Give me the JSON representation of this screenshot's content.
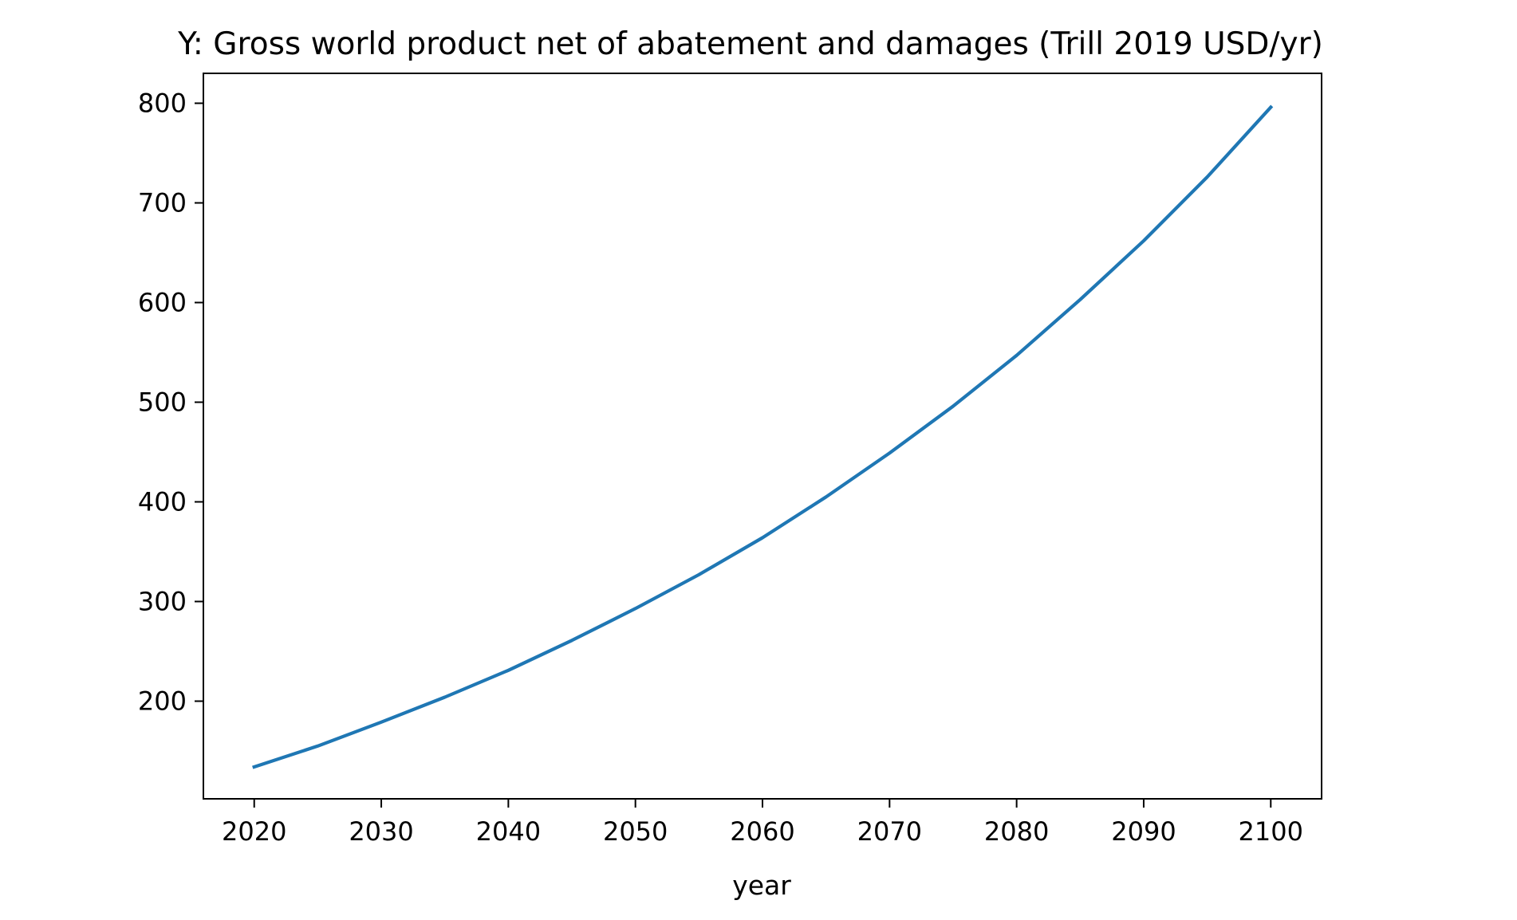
{
  "chart_data": {
    "type": "line",
    "title": "Y: Gross world product net of abatement and damages (Trill 2019 USD/yr)",
    "xlabel": "year",
    "ylabel": "",
    "xlim": [
      2016,
      2104
    ],
    "ylim": [
      102,
      830
    ],
    "x_ticks": [
      2020,
      2030,
      2040,
      2050,
      2060,
      2070,
      2080,
      2090,
      2100
    ],
    "y_ticks": [
      200,
      300,
      400,
      500,
      600,
      700,
      800
    ],
    "grid": false,
    "legend": "none",
    "series": [
      {
        "color": "#1f77b4",
        "x": [
          2020,
          2025,
          2030,
          2035,
          2040,
          2045,
          2050,
          2055,
          2060,
          2065,
          2070,
          2075,
          2080,
          2085,
          2090,
          2095,
          2100
        ],
        "y": [
          134,
          155,
          179,
          204,
          231,
          261,
          293,
          327,
          364,
          405,
          449,
          496,
          547,
          603,
          662,
          726,
          796
        ]
      }
    ]
  }
}
